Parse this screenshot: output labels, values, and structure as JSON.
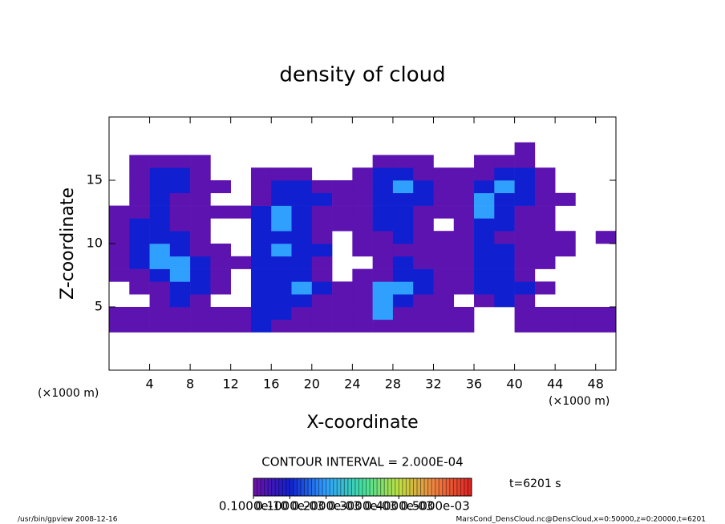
{
  "chart_data": {
    "type": "contour",
    "title": "density of cloud",
    "xlabel": "X-coordinate",
    "ylabel": "Z-coordinate",
    "x_unit_labels": [
      "(×1000 m)",
      "(×1000 m)"
    ],
    "contour_interval_label": "CONTOUR INTERVAL = 2.000E-04",
    "time_label": "t=6201 s",
    "footer_left": "/usr/bin/gpview  2008-12-16",
    "footer_right": "MarsCond_DensCloud.nc@DensCloud,x=0:50000,z=0:20000,t=6201",
    "xlim": [
      0,
      50
    ],
    "xticks": [
      4,
      8,
      12,
      16,
      20,
      24,
      28,
      32,
      36,
      40,
      44,
      48
    ],
    "ylim": [
      0,
      20
    ],
    "yticks": [
      5,
      10,
      15
    ],
    "colormap": [
      "#7010a8",
      "#1020d0",
      "#30a0ff",
      "#40e0a0",
      "#c0e040",
      "#f08040",
      "#e02020"
    ],
    "clim": [
      0,
      0.0006
    ],
    "colorbar_ticks": [
      {
        "value": 1e-11,
        "label": "0.1000e-10"
      },
      {
        "value": 0.0001,
        "label": "0.1000e-03"
      },
      {
        "value": 0.0002,
        "label": "0.2000e-03"
      },
      {
        "value": 0.0003,
        "label": "0.3000e-03"
      },
      {
        "value": 0.0004,
        "label": "0.4000e-03"
      },
      {
        "value": 0.0005,
        "label": "0.5000e-03"
      }
    ],
    "x": [
      1,
      3,
      5,
      7,
      9,
      11,
      13,
      15,
      17,
      19,
      21,
      23,
      25,
      27,
      29,
      31,
      33,
      35,
      37,
      39,
      41,
      43,
      45,
      47,
      49
    ],
    "y": [
      0.5,
      1.5,
      2.5,
      3.5,
      4.5,
      5.5,
      6.5,
      7.5,
      8.5,
      9.5,
      10.5,
      11.5,
      12.5,
      13.5,
      14.5,
      15.5,
      16.5,
      17.5,
      18.5,
      19.5
    ],
    "z": [
      [
        0,
        0,
        0,
        0,
        0,
        0,
        0,
        0,
        0,
        0,
        0,
        0,
        0,
        0,
        0,
        0,
        0,
        0,
        0,
        0,
        0,
        0,
        0,
        0,
        0
      ],
      [
        0,
        0,
        0,
        0,
        0,
        0,
        0,
        0,
        0,
        0,
        0,
        0,
        0,
        0,
        0,
        0,
        0,
        0,
        0,
        0,
        0,
        0,
        0,
        0,
        0
      ],
      [
        0,
        0,
        0,
        0,
        0,
        0,
        0,
        0,
        0,
        0,
        0,
        0,
        0,
        0,
        0,
        0,
        0,
        0,
        0,
        0,
        0,
        0,
        0,
        0,
        0
      ],
      [
        2e-05,
        2e-05,
        2e-05,
        2e-05,
        2e-05,
        2e-05,
        2e-05,
        0.0001,
        2e-05,
        2e-05,
        2e-05,
        2e-05,
        2e-05,
        2e-05,
        2e-05,
        2e-05,
        2e-05,
        2e-05,
        0,
        0,
        2e-05,
        2e-05,
        2e-05,
        2e-05,
        2e-05
      ],
      [
        2e-05,
        2e-05,
        2e-05,
        2e-05,
        2e-05,
        2e-05,
        2e-05,
        0.0001,
        0.0001,
        2e-05,
        2e-05,
        2e-05,
        2e-05,
        0.0002,
        2e-05,
        2e-05,
        2e-05,
        2e-05,
        0,
        0,
        2e-05,
        2e-05,
        2e-05,
        2e-05,
        2e-05
      ],
      [
        0,
        0,
        2e-05,
        0.0001,
        2e-05,
        0,
        0,
        0.0001,
        0.0001,
        0.0001,
        2e-05,
        2e-05,
        2e-05,
        0.0002,
        0.0001,
        2e-05,
        2e-05,
        0,
        2e-05,
        0.0001,
        2e-05,
        0,
        0,
        0,
        0
      ],
      [
        0,
        2e-05,
        2e-05,
        0.0001,
        0.0001,
        2e-05,
        0,
        0.0001,
        0.0001,
        0.0002,
        0.0001,
        2e-05,
        2e-05,
        0.0002,
        0.0002,
        0.0001,
        2e-05,
        2e-05,
        0.0001,
        0.0001,
        0.0001,
        2e-05,
        0,
        0,
        0
      ],
      [
        2e-05,
        2e-05,
        0.0001,
        0.0002,
        0.0001,
        2e-05,
        0,
        0.0001,
        0.0001,
        0.0001,
        2e-05,
        0,
        2e-05,
        2e-05,
        0.0001,
        0.0001,
        2e-05,
        2e-05,
        0.0001,
        0.0001,
        2e-05,
        0,
        0,
        0,
        0
      ],
      [
        2e-05,
        0.0001,
        0.0002,
        0.0002,
        0.0001,
        2e-05,
        2e-05,
        0.0001,
        0.0001,
        0.0001,
        2e-05,
        0,
        0,
        2e-05,
        0.0001,
        2e-05,
        2e-05,
        2e-05,
        0.0001,
        0.0001,
        2e-05,
        2e-05,
        0,
        0,
        0
      ],
      [
        2e-05,
        0.0001,
        0.0002,
        0.0001,
        2e-05,
        2e-05,
        0,
        0.0001,
        0.0002,
        0.0001,
        0.0001,
        0,
        2e-05,
        2e-05,
        2e-05,
        2e-05,
        2e-05,
        2e-05,
        0.0001,
        0.0001,
        2e-05,
        2e-05,
        2e-05,
        0,
        0
      ],
      [
        2e-05,
        0.0001,
        0.0001,
        0.0001,
        2e-05,
        0,
        0,
        0.0001,
        0.0001,
        0.0001,
        2e-05,
        0,
        2e-05,
        2e-05,
        0.0001,
        2e-05,
        2e-05,
        2e-05,
        0.0001,
        2e-05,
        2e-05,
        2e-05,
        2e-05,
        0,
        2e-05
      ],
      [
        2e-05,
        0.0001,
        0.0001,
        2e-05,
        2e-05,
        0,
        0,
        0.0001,
        0.0002,
        0.0001,
        2e-05,
        2e-05,
        2e-05,
        0.0001,
        0.0001,
        2e-05,
        0,
        2e-05,
        0.0001,
        0.0001,
        2e-05,
        2e-05,
        0,
        0,
        0
      ],
      [
        2e-05,
        2e-05,
        0.0001,
        2e-05,
        2e-05,
        2e-05,
        2e-05,
        0.0001,
        0.0002,
        0.0001,
        2e-05,
        2e-05,
        2e-05,
        0.0001,
        0.0001,
        2e-05,
        2e-05,
        2e-05,
        0.0002,
        0.0001,
        2e-05,
        2e-05,
        0,
        0,
        0
      ],
      [
        0,
        2e-05,
        0.0001,
        2e-05,
        2e-05,
        0,
        0,
        2e-05,
        0.0001,
        0.0001,
        0.0001,
        2e-05,
        2e-05,
        0.0001,
        0.0001,
        0.0001,
        2e-05,
        2e-05,
        0.0002,
        0.0001,
        0.0001,
        2e-05,
        2e-05,
        0,
        0
      ],
      [
        0,
        2e-05,
        0.0001,
        0.0001,
        2e-05,
        2e-05,
        0,
        2e-05,
        0.0001,
        0.0001,
        2e-05,
        2e-05,
        2e-05,
        0.0001,
        0.0002,
        0.0001,
        2e-05,
        2e-05,
        0.0001,
        0.0002,
        0.0001,
        2e-05,
        0,
        0,
        0
      ],
      [
        0,
        2e-05,
        0.0001,
        0.0001,
        2e-05,
        0,
        0,
        2e-05,
        2e-05,
        2e-05,
        0,
        0,
        2e-05,
        0.0001,
        0.0001,
        2e-05,
        2e-05,
        2e-05,
        2e-05,
        0.0001,
        0.0001,
        2e-05,
        0,
        0,
        0
      ],
      [
        0,
        2e-05,
        2e-05,
        2e-05,
        2e-05,
        0,
        0,
        0,
        0,
        0,
        0,
        0,
        0,
        2e-05,
        2e-05,
        2e-05,
        0,
        0,
        2e-05,
        2e-05,
        2e-05,
        0,
        0,
        0,
        0
      ],
      [
        0,
        0,
        0,
        0,
        0,
        0,
        0,
        0,
        0,
        0,
        0,
        0,
        0,
        0,
        0,
        0,
        0,
        0,
        0,
        0,
        2e-05,
        0,
        0,
        0,
        0
      ],
      [
        0,
        0,
        0,
        0,
        0,
        0,
        0,
        0,
        0,
        0,
        0,
        0,
        0,
        0,
        0,
        0,
        0,
        0,
        0,
        0,
        0,
        0,
        0,
        0,
        0
      ],
      [
        0,
        0,
        0,
        0,
        0,
        0,
        0,
        0,
        0,
        0,
        0,
        0,
        0,
        0,
        0,
        0,
        0,
        0,
        0,
        0,
        0,
        0,
        0,
        0,
        0
      ]
    ]
  }
}
